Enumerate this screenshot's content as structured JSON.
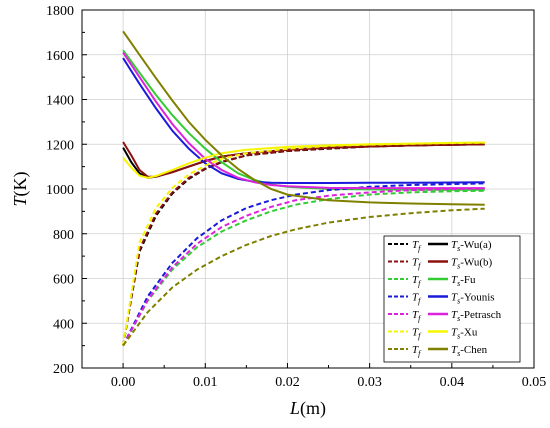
{
  "chart_data": {
    "type": "line",
    "xlabel_main": "L",
    "xlabel_unit": "(m)",
    "ylabel_main": "T",
    "ylabel_unit": "(K)",
    "xlim": [
      -0.005,
      0.05
    ],
    "ylim": [
      200,
      1800
    ],
    "x_ticks": [
      "0.00",
      "0.01",
      "0.02",
      "0.03",
      "0.04",
      "0.05"
    ],
    "x_tick_values": [
      0,
      0.01,
      0.02,
      0.03,
      0.04,
      0.05
    ],
    "y_ticks": [
      "200",
      "400",
      "600",
      "800",
      "1000",
      "1200",
      "1400",
      "1600",
      "1800"
    ],
    "y_tick_values": [
      200,
      400,
      600,
      800,
      1000,
      1200,
      1400,
      1600,
      1800
    ],
    "grid": true,
    "legend_position": "bottom-right",
    "series": [
      {
        "color": "#000000",
        "tf_label": "T",
        "tf_sub": "f",
        "ts_label": "T",
        "ts_sub": "s",
        "ts_suffix": "-Wu(a)",
        "fluid": [
          [
            0,
            300
          ],
          [
            0.002,
            720
          ],
          [
            0.004,
            880
          ],
          [
            0.006,
            980
          ],
          [
            0.008,
            1045
          ],
          [
            0.01,
            1090
          ],
          [
            0.012,
            1120
          ],
          [
            0.015,
            1150
          ],
          [
            0.02,
            1170
          ],
          [
            0.025,
            1180
          ],
          [
            0.03,
            1190
          ],
          [
            0.035,
            1195
          ],
          [
            0.04,
            1198
          ],
          [
            0.044,
            1200
          ]
        ],
        "solid": [
          [
            0,
            1185
          ],
          [
            0.001,
            1120
          ],
          [
            0.002,
            1070
          ],
          [
            0.003,
            1050
          ],
          [
            0.004,
            1055
          ],
          [
            0.006,
            1075
          ],
          [
            0.008,
            1100
          ],
          [
            0.01,
            1125
          ],
          [
            0.012,
            1145
          ],
          [
            0.015,
            1160
          ],
          [
            0.02,
            1175
          ],
          [
            0.025,
            1185
          ],
          [
            0.03,
            1190
          ],
          [
            0.035,
            1195
          ],
          [
            0.04,
            1198
          ],
          [
            0.044,
            1200
          ]
        ]
      },
      {
        "color": "#8b1010",
        "tf_label": "T",
        "tf_sub": "f",
        "ts_label": "T",
        "ts_sub": "s",
        "ts_suffix": "-Wu(b)",
        "fluid": [
          [
            0,
            300
          ],
          [
            0.002,
            730
          ],
          [
            0.004,
            890
          ],
          [
            0.006,
            985
          ],
          [
            0.008,
            1050
          ],
          [
            0.01,
            1092
          ],
          [
            0.012,
            1122
          ],
          [
            0.015,
            1150
          ],
          [
            0.02,
            1170
          ],
          [
            0.025,
            1182
          ],
          [
            0.03,
            1190
          ],
          [
            0.035,
            1195
          ],
          [
            0.04,
            1198
          ],
          [
            0.044,
            1200
          ]
        ],
        "solid": [
          [
            0,
            1210
          ],
          [
            0.001,
            1150
          ],
          [
            0.002,
            1085
          ],
          [
            0.003,
            1055
          ],
          [
            0.004,
            1055
          ],
          [
            0.006,
            1075
          ],
          [
            0.008,
            1100
          ],
          [
            0.01,
            1125
          ],
          [
            0.012,
            1145
          ],
          [
            0.015,
            1160
          ],
          [
            0.02,
            1175
          ],
          [
            0.025,
            1185
          ],
          [
            0.03,
            1190
          ],
          [
            0.035,
            1195
          ],
          [
            0.04,
            1198
          ],
          [
            0.044,
            1200
          ]
        ]
      },
      {
        "color": "#33cc33",
        "tf_label": "T",
        "tf_sub": "f",
        "ts_label": "T",
        "ts_sub": "s",
        "ts_suffix": "-Fu",
        "fluid": [
          [
            0,
            300
          ],
          [
            0.003,
            500
          ],
          [
            0.006,
            640
          ],
          [
            0.009,
            740
          ],
          [
            0.012,
            810
          ],
          [
            0.015,
            860
          ],
          [
            0.018,
            900
          ],
          [
            0.021,
            930
          ],
          [
            0.025,
            955
          ],
          [
            0.03,
            975
          ],
          [
            0.035,
            985
          ],
          [
            0.04,
            990
          ],
          [
            0.044,
            992
          ]
        ],
        "solid": [
          [
            0,
            1620
          ],
          [
            0.002,
            1520
          ],
          [
            0.004,
            1420
          ],
          [
            0.006,
            1330
          ],
          [
            0.008,
            1250
          ],
          [
            0.01,
            1180
          ],
          [
            0.012,
            1120
          ],
          [
            0.014,
            1070
          ],
          [
            0.016,
            1040
          ],
          [
            0.018,
            1020
          ],
          [
            0.02,
            1010
          ],
          [
            0.025,
            1000
          ],
          [
            0.03,
            998
          ],
          [
            0.035,
            997
          ],
          [
            0.04,
            997
          ],
          [
            0.044,
            997
          ]
        ]
      },
      {
        "color": "#1a1adb",
        "tf_label": "T",
        "tf_sub": "f",
        "ts_label": "T",
        "ts_sub": "s",
        "ts_suffix": "-Younis",
        "fluid": [
          [
            0,
            300
          ],
          [
            0.003,
            520
          ],
          [
            0.006,
            670
          ],
          [
            0.009,
            780
          ],
          [
            0.012,
            860
          ],
          [
            0.015,
            915
          ],
          [
            0.018,
            950
          ],
          [
            0.021,
            975
          ],
          [
            0.025,
            995
          ],
          [
            0.03,
            1010
          ],
          [
            0.035,
            1018
          ],
          [
            0.04,
            1022
          ],
          [
            0.044,
            1025
          ]
        ],
        "solid": [
          [
            0,
            1585
          ],
          [
            0.002,
            1470
          ],
          [
            0.004,
            1360
          ],
          [
            0.006,
            1260
          ],
          [
            0.008,
            1180
          ],
          [
            0.01,
            1115
          ],
          [
            0.012,
            1070
          ],
          [
            0.014,
            1045
          ],
          [
            0.016,
            1032
          ],
          [
            0.018,
            1028
          ],
          [
            0.02,
            1027
          ],
          [
            0.025,
            1027
          ],
          [
            0.03,
            1028
          ],
          [
            0.035,
            1028
          ],
          [
            0.04,
            1029
          ],
          [
            0.044,
            1030
          ]
        ]
      },
      {
        "color": "#dd22dd",
        "tf_label": "T",
        "tf_sub": "f",
        "ts_label": "T",
        "ts_sub": "s",
        "ts_suffix": "-Petrasch",
        "fluid": [
          [
            0,
            300
          ],
          [
            0.003,
            505
          ],
          [
            0.006,
            650
          ],
          [
            0.009,
            755
          ],
          [
            0.012,
            830
          ],
          [
            0.015,
            880
          ],
          [
            0.018,
            920
          ],
          [
            0.021,
            950
          ],
          [
            0.025,
            970
          ],
          [
            0.03,
            985
          ],
          [
            0.035,
            995
          ],
          [
            0.04,
            1000
          ],
          [
            0.044,
            1002
          ]
        ],
        "solid": [
          [
            0,
            1610
          ],
          [
            0.002,
            1500
          ],
          [
            0.004,
            1390
          ],
          [
            0.006,
            1290
          ],
          [
            0.008,
            1205
          ],
          [
            0.01,
            1135
          ],
          [
            0.012,
            1085
          ],
          [
            0.014,
            1050
          ],
          [
            0.016,
            1030
          ],
          [
            0.018,
            1018
          ],
          [
            0.02,
            1012
          ],
          [
            0.025,
            1005
          ],
          [
            0.03,
            1004
          ],
          [
            0.035,
            1004
          ],
          [
            0.04,
            1004
          ],
          [
            0.044,
            1004
          ]
        ]
      },
      {
        "color": "#f5f500",
        "tf_label": "T",
        "tf_sub": "f",
        "ts_label": "T",
        "ts_sub": "s",
        "ts_suffix": "-Xu",
        "fluid": [
          [
            0,
            300
          ],
          [
            0.002,
            760
          ],
          [
            0.004,
            915
          ],
          [
            0.006,
            1005
          ],
          [
            0.008,
            1065
          ],
          [
            0.01,
            1105
          ],
          [
            0.012,
            1135
          ],
          [
            0.015,
            1160
          ],
          [
            0.02,
            1180
          ],
          [
            0.025,
            1192
          ],
          [
            0.03,
            1198
          ],
          [
            0.035,
            1202
          ],
          [
            0.04,
            1205
          ],
          [
            0.044,
            1207
          ]
        ],
        "solid": [
          [
            0,
            1140
          ],
          [
            0.001,
            1095
          ],
          [
            0.002,
            1060
          ],
          [
            0.003,
            1050
          ],
          [
            0.004,
            1058
          ],
          [
            0.006,
            1085
          ],
          [
            0.008,
            1115
          ],
          [
            0.01,
            1140
          ],
          [
            0.012,
            1160
          ],
          [
            0.015,
            1175
          ],
          [
            0.02,
            1188
          ],
          [
            0.025,
            1195
          ],
          [
            0.03,
            1200
          ],
          [
            0.035,
            1203
          ],
          [
            0.04,
            1206
          ],
          [
            0.044,
            1208
          ]
        ]
      },
      {
        "color": "#808000",
        "tf_label": "T",
        "tf_sub": "f",
        "ts_label": "T",
        "ts_sub": "s",
        "ts_suffix": "-Chen",
        "fluid": [
          [
            0,
            300
          ],
          [
            0.003,
            450
          ],
          [
            0.006,
            560
          ],
          [
            0.009,
            640
          ],
          [
            0.012,
            700
          ],
          [
            0.015,
            750
          ],
          [
            0.018,
            790
          ],
          [
            0.021,
            820
          ],
          [
            0.025,
            850
          ],
          [
            0.03,
            875
          ],
          [
            0.035,
            892
          ],
          [
            0.04,
            905
          ],
          [
            0.044,
            912
          ]
        ],
        "solid": [
          [
            0,
            1705
          ],
          [
            0.002,
            1600
          ],
          [
            0.004,
            1495
          ],
          [
            0.006,
            1395
          ],
          [
            0.008,
            1300
          ],
          [
            0.01,
            1220
          ],
          [
            0.012,
            1150
          ],
          [
            0.014,
            1090
          ],
          [
            0.016,
            1040
          ],
          [
            0.018,
            1000
          ],
          [
            0.02,
            975
          ],
          [
            0.025,
            950
          ],
          [
            0.03,
            940
          ],
          [
            0.035,
            935
          ],
          [
            0.04,
            932
          ],
          [
            0.044,
            930
          ]
        ]
      }
    ]
  }
}
